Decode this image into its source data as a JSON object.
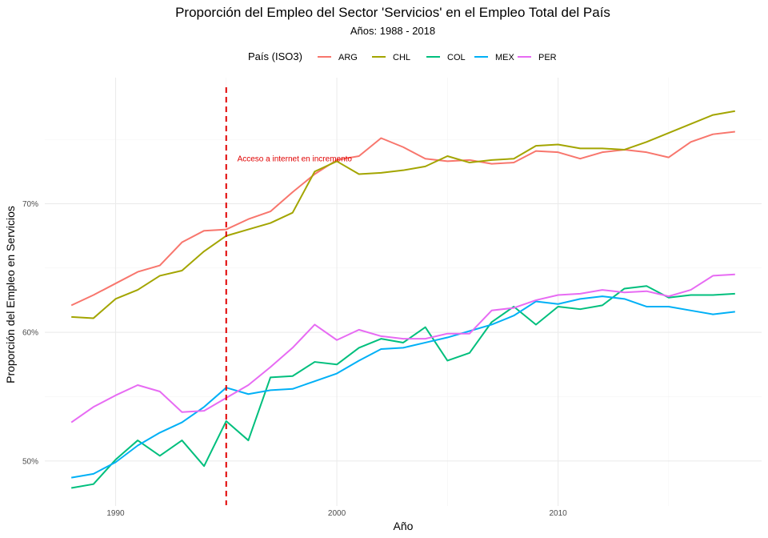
{
  "chart_data": {
    "type": "line",
    "title": "Proporción del Empleo del Sector 'Servicios' en el Empleo Total del País",
    "subtitle": "Años: 1988 - 2018",
    "xlabel": "Año",
    "ylabel": "Proporción del Empleo en Servicios",
    "legend": {
      "title": "País (ISO3)",
      "position": "top"
    },
    "xlim": [
      1986.8,
      2019.2
    ],
    "ylim": [
      46.5,
      79.8
    ],
    "x_ticks": [
      1990,
      2000,
      2010
    ],
    "x_tick_labels": [
      "1990",
      "2000",
      "2010"
    ],
    "y_ticks": [
      50,
      60,
      70
    ],
    "y_tick_labels": [
      "50%",
      "60%",
      "70%"
    ],
    "grid": true,
    "x": [
      1988,
      1989,
      1990,
      1991,
      1992,
      1993,
      1994,
      1995,
      1996,
      1997,
      1998,
      1999,
      2000,
      2001,
      2002,
      2003,
      2004,
      2005,
      2006,
      2007,
      2008,
      2009,
      2010,
      2011,
      2012,
      2013,
      2014,
      2015,
      2016,
      2017,
      2018
    ],
    "series": [
      {
        "name": "ARG",
        "color": "#F8766D",
        "values": [
          62.1,
          62.9,
          63.8,
          64.7,
          65.2,
          67.0,
          67.9,
          68.0,
          68.8,
          69.4,
          70.9,
          72.3,
          73.4,
          73.7,
          75.1,
          74.4,
          73.5,
          73.3,
          73.4,
          73.1,
          73.2,
          74.1,
          74.0,
          73.5,
          74.0,
          74.2,
          74.0,
          73.6,
          74.8,
          75.4,
          75.6
        ]
      },
      {
        "name": "CHL",
        "color": "#A3A500",
        "values": [
          61.2,
          61.1,
          62.6,
          63.3,
          64.4,
          64.8,
          66.3,
          67.5,
          68.0,
          68.5,
          69.3,
          72.5,
          73.3,
          72.3,
          72.4,
          72.6,
          72.9,
          73.7,
          73.2,
          73.4,
          73.5,
          74.5,
          74.6,
          74.3,
          74.3,
          74.2,
          74.8,
          75.5,
          76.2,
          76.9,
          77.2
        ]
      },
      {
        "name": "COL",
        "color": "#00BF7D",
        "values": [
          47.9,
          48.2,
          50.1,
          51.6,
          50.4,
          51.6,
          49.6,
          53.1,
          51.6,
          56.5,
          56.6,
          57.7,
          57.5,
          58.8,
          59.5,
          59.2,
          60.4,
          57.8,
          58.4,
          60.8,
          62.0,
          60.6,
          62.0,
          61.8,
          62.1,
          63.4,
          63.6,
          62.7,
          62.9,
          62.9,
          63.0
        ]
      },
      {
        "name": "MEX",
        "color": "#00B0F6",
        "values": [
          48.7,
          49.0,
          49.9,
          51.2,
          52.2,
          53.0,
          54.2,
          55.7,
          55.2,
          55.5,
          55.6,
          56.2,
          56.8,
          57.8,
          58.7,
          58.8,
          59.2,
          59.6,
          60.1,
          60.6,
          61.3,
          62.4,
          62.2,
          62.6,
          62.8,
          62.6,
          62.0,
          62.0,
          61.7,
          61.4,
          61.6
        ]
      },
      {
        "name": "PER",
        "color": "#E76BF3",
        "values": [
          53.0,
          54.2,
          55.1,
          55.9,
          55.4,
          53.8,
          53.9,
          54.9,
          55.9,
          57.3,
          58.8,
          60.6,
          59.4,
          60.2,
          59.7,
          59.5,
          59.5,
          59.9,
          59.9,
          61.7,
          61.9,
          62.5,
          62.9,
          63.0,
          63.3,
          63.1,
          63.2,
          62.8,
          63.3,
          64.4,
          64.5
        ]
      }
    ],
    "reference_line": {
      "orientation": "vertical",
      "x": 1995,
      "color": "#E00000",
      "style": "dashed"
    },
    "annotation": {
      "text": "Acceso a internet en incremento",
      "x": 1995.5,
      "y": 73.3,
      "color": "#E00000"
    }
  }
}
